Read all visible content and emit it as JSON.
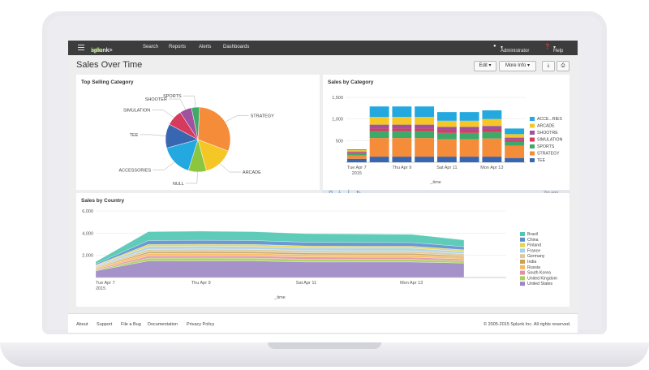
{
  "topbar": {
    "brand": "splunk>",
    "brand_suffix": "light",
    "nav": [
      "Search",
      "Reports",
      "Alerts",
      "Dashboards"
    ],
    "user": "Administrator",
    "help": "Help"
  },
  "page": {
    "title": "Sales Over Time",
    "edit_label": "Edit",
    "more_info_label": "More Info"
  },
  "panels": {
    "top_selling": {
      "title": "Top Selling Category"
    },
    "sales_by_category": {
      "title": "Sales by Category",
      "timestamp": "2m ago"
    },
    "sales_by_country": {
      "title": "Sales by Country"
    }
  },
  "footer": {
    "links": [
      "About",
      "Support",
      "File a Bug",
      "Documentation",
      "Privacy Policy"
    ],
    "copyright": "© 2005-2015 Splunk Inc. All rights reserved."
  },
  "colors": {
    "accent": "#8cc63f",
    "topbar": "#3c3c3c"
  },
  "chart_data": [
    {
      "type": "pie",
      "title": "Top Selling Category",
      "labels": [
        "STRATEGY",
        "ARCADE",
        "NULL",
        "ACCESSORIES",
        "TEE",
        "SIMULATION",
        "SHOOTER",
        "SPORTS"
      ],
      "values": [
        30,
        15,
        9,
        16,
        12,
        8,
        6,
        4
      ],
      "colors": [
        "#f58c3a",
        "#f5c726",
        "#8cc63f",
        "#23a8e0",
        "#3866b0",
        "#d63a5c",
        "#a0529e",
        "#3fa96a"
      ]
    },
    {
      "type": "bar",
      "stacked": true,
      "title": "Sales by Category",
      "xlabel": "_time",
      "ylim": [
        0,
        1500
      ],
      "yticks": [
        "500",
        "1,000",
        "1,500"
      ],
      "x_tick_labels": [
        "Tue Apr 7\n2015",
        "Thu Apr 9",
        "Sat Apr 11",
        "Mon Apr 13"
      ],
      "series": [
        {
          "name": "TEE",
          "color": "#3866b0",
          "values": [
            80,
            130,
            130,
            130,
            130,
            130,
            130,
            100
          ]
        },
        {
          "name": "STRATEGY",
          "color": "#f58c3a",
          "values": [
            80,
            430,
            430,
            430,
            400,
            400,
            420,
            280
          ]
        },
        {
          "name": "SPORTS",
          "color": "#3fa96a",
          "values": [
            50,
            160,
            160,
            160,
            150,
            150,
            150,
            90
          ]
        },
        {
          "name": "SIMULATION",
          "color": "#d63a5c",
          "values": [
            20,
            60,
            60,
            60,
            60,
            60,
            60,
            40
          ]
        },
        {
          "name": "SHOOTRE",
          "color": "#a0529e",
          "values": [
            20,
            90,
            90,
            90,
            80,
            80,
            80,
            60
          ]
        },
        {
          "name": "ARCADE",
          "color": "#f5c726",
          "values": [
            30,
            180,
            180,
            180,
            140,
            140,
            160,
            80
          ]
        },
        {
          "name": "ACCE...RIES",
          "color": "#23a8e0",
          "values": [
            20,
            240,
            240,
            240,
            200,
            200,
            200,
            130
          ]
        }
      ]
    },
    {
      "type": "area",
      "stacked": true,
      "title": "Sales by Country",
      "xlabel": "_time",
      "ylim": [
        0,
        6000
      ],
      "yticks": [
        "2,000",
        "4,000",
        "6,000"
      ],
      "x_tick_labels": [
        "Tue Apr 7\n2015",
        "Thu Apr 9",
        "Sat Apr 11",
        "Mon Apr 13"
      ],
      "series": [
        {
          "name": "United States",
          "color": "#9b86c2",
          "values": [
            600,
            1500,
            1500,
            1500,
            1400,
            1400,
            1400,
            1300
          ]
        },
        {
          "name": "United Kingdom",
          "color": "#a8cf5a",
          "values": [
            80,
            250,
            260,
            250,
            250,
            240,
            240,
            200
          ]
        },
        {
          "name": "South Korea",
          "color": "#e58fa6",
          "values": [
            80,
            200,
            200,
            200,
            200,
            190,
            190,
            160
          ]
        },
        {
          "name": "Russia",
          "color": "#f7b95a",
          "values": [
            80,
            220,
            220,
            220,
            210,
            210,
            210,
            180
          ]
        },
        {
          "name": "India",
          "color": "#c8a05a",
          "values": [
            60,
            150,
            160,
            150,
            150,
            150,
            150,
            120
          ]
        },
        {
          "name": "Germany",
          "color": "#d9c9a0",
          "values": [
            80,
            230,
            230,
            230,
            220,
            220,
            220,
            190
          ]
        },
        {
          "name": "France",
          "color": "#aad0e8",
          "values": [
            80,
            250,
            250,
            250,
            240,
            240,
            240,
            200
          ]
        },
        {
          "name": "Finland",
          "color": "#e7d34a",
          "values": [
            60,
            180,
            180,
            180,
            170,
            170,
            170,
            150
          ]
        },
        {
          "name": "China",
          "color": "#5a8ed0",
          "values": [
            100,
            350,
            360,
            350,
            340,
            340,
            330,
            280
          ]
        },
        {
          "name": "Brazil",
          "color": "#4cc7b0",
          "values": [
            200,
            800,
            820,
            800,
            770,
            760,
            740,
            600
          ]
        }
      ]
    }
  ]
}
